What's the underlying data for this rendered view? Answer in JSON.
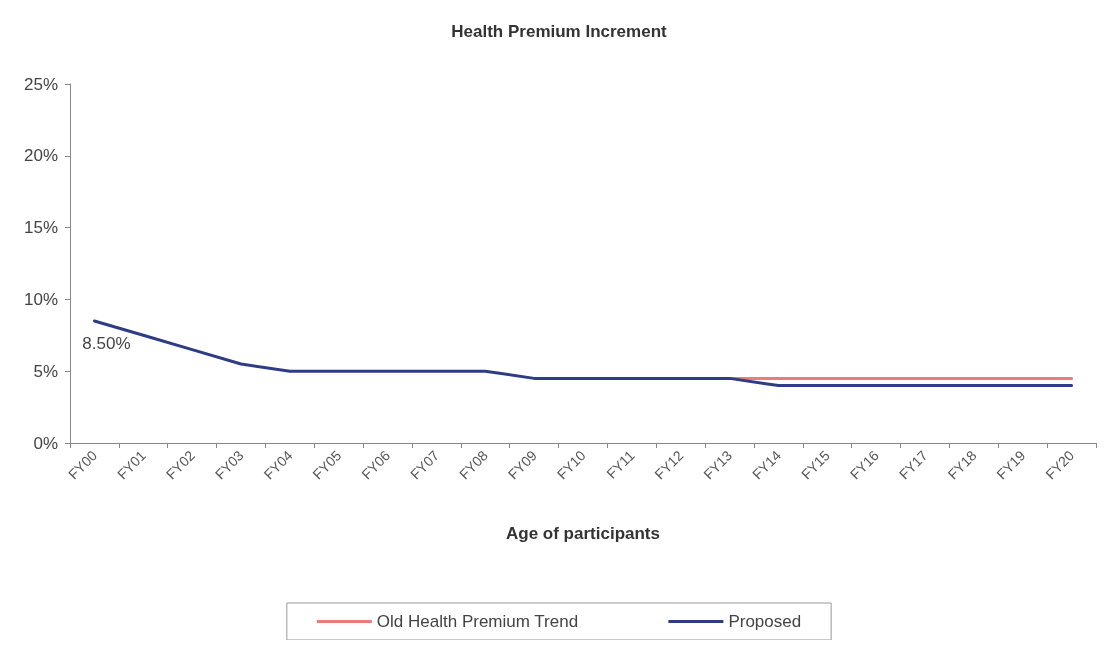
{
  "chart_data": {
    "type": "line",
    "title": "Health Premium Increment",
    "xlabel": "Age of participants",
    "categories": [
      "FY00",
      "FY01",
      "FY02",
      "FY03",
      "FY04",
      "FY05",
      "FY06",
      "FY07",
      "FY08",
      "FY09",
      "FY10",
      "FY11",
      "FY12",
      "FY13",
      "FY14",
      "FY15",
      "FY16",
      "FY17",
      "FY18",
      "FY19",
      "FY20"
    ],
    "series": [
      {
        "name": "Old Health Premium Trend",
        "color": "#ee7b7b",
        "values": [
          null,
          null,
          null,
          null,
          null,
          null,
          null,
          null,
          null,
          null,
          null,
          null,
          null,
          4.5,
          4.5,
          4.5,
          4.5,
          4.5,
          4.5,
          4.5,
          4.5
        ]
      },
      {
        "name": "Proposed",
        "color": "#2e3b85",
        "values": [
          8.5,
          7.5,
          6.5,
          5.5,
          5,
          5,
          5,
          5,
          5,
          4.5,
          4.5,
          4.5,
          4.5,
          4.5,
          4,
          4,
          4,
          4,
          4,
          4,
          4
        ],
        "value_labels": [
          "8.50%",
          null,
          null,
          null,
          null,
          null,
          null,
          null,
          null,
          null,
          null,
          null,
          null,
          null,
          null,
          null,
          null,
          null,
          null,
          null,
          null
        ]
      }
    ],
    "ylim": [
      0,
      25
    ],
    "yticks": [
      {
        "value": 0,
        "label": "0%"
      },
      {
        "value": 5,
        "label": "5%"
      },
      {
        "value": 10,
        "label": "10%"
      },
      {
        "value": 15,
        "label": "15%"
      },
      {
        "value": 20,
        "label": "20%"
      },
      {
        "value": 25,
        "label": "25%"
      }
    ],
    "legend": "bottom",
    "marker": "none"
  }
}
